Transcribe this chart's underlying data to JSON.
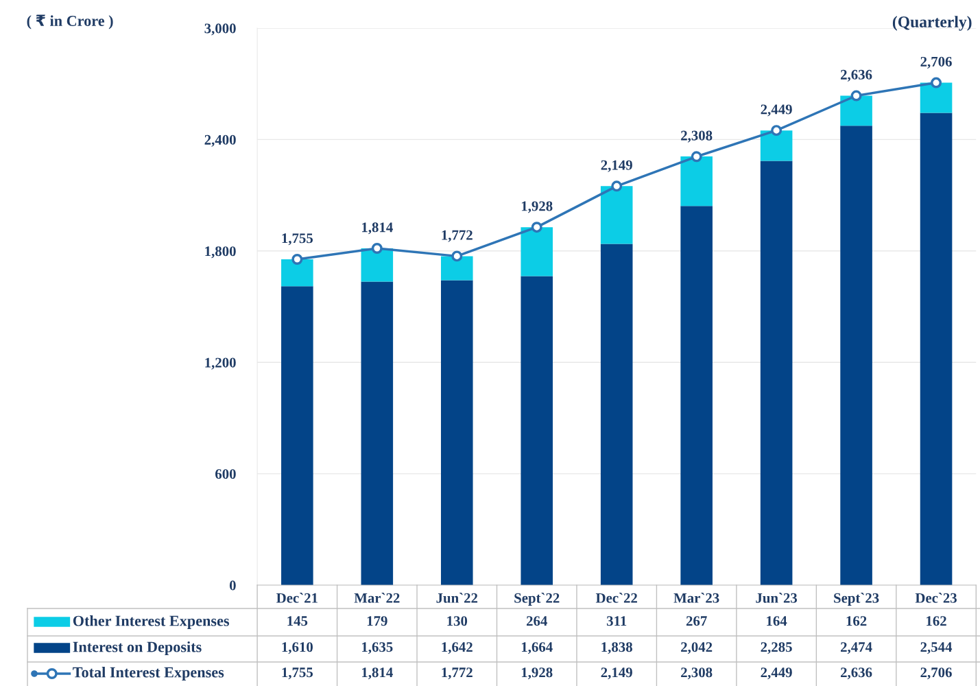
{
  "chart_data": {
    "type": "bar",
    "stacked": true,
    "categories": [
      "Dec`21",
      "Mar`22",
      "Jun`22",
      "Sept`22",
      "Dec`22",
      "Mar`23",
      "Jun`23",
      "Sept`23",
      "Dec`23"
    ],
    "series": [
      {
        "name": "Interest on Deposits",
        "color": "#034488",
        "values": [
          1610,
          1635,
          1642,
          1664,
          1838,
          2042,
          2285,
          2474,
          2544
        ],
        "value_labels": [
          "1,610",
          "1,635",
          "1,642",
          "1,664",
          "1,838",
          "2,042",
          "2,285",
          "2,474",
          "2,544"
        ]
      },
      {
        "name": "Other Interest Expenses",
        "color": "#0ccde6",
        "values": [
          145,
          179,
          130,
          264,
          311,
          267,
          164,
          162,
          162
        ],
        "value_labels": [
          "145",
          "179",
          "130",
          "264",
          "311",
          "267",
          "164",
          "162",
          "162"
        ]
      },
      {
        "name": "Total Interest Expenses",
        "type": "line",
        "color": "#2e75b6",
        "marker": "circle",
        "values": [
          1755,
          1814,
          1772,
          1928,
          2149,
          2308,
          2449,
          2636,
          2706
        ],
        "value_labels": [
          "1,755",
          "1,814",
          "1,772",
          "1,928",
          "2,149",
          "2,308",
          "2,449",
          "2,636",
          "2,706"
        ]
      }
    ],
    "ylim": [
      0,
      3000
    ],
    "yticks": [
      {
        "value": 0,
        "label": "0"
      },
      {
        "value": 600,
        "label": "600"
      },
      {
        "value": 1200,
        "label": "1,200"
      },
      {
        "value": 1800,
        "label": "1,800"
      },
      {
        "value": 2400,
        "label": "2,400"
      },
      {
        "value": 3000,
        "label": "3,000"
      }
    ],
    "grid": "y",
    "legend": "bottom",
    "annotations": [
      "( ₹ in Crore )",
      "(Quarterly)"
    ]
  }
}
